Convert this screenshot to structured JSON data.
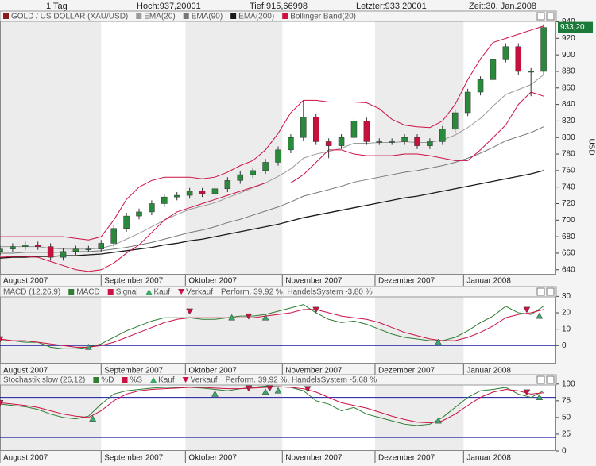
{
  "header": {
    "period": "1 Tag",
    "high": "Hoch:937,20001",
    "low": "Tief:915,66998",
    "last": "Letzter:933,20001",
    "time": "Zeit:30. Jan.2008"
  },
  "chart_data": [
    {
      "type": "candlestick",
      "title": "GOLD / US DOLLAR (XAU/USD)",
      "color": "#8b1a1a",
      "y_label": "USD",
      "x": [
        0,
        3,
        6,
        9,
        12,
        15,
        18,
        21,
        24,
        27,
        30,
        33,
        36,
        39,
        42,
        45,
        48,
        51,
        54,
        57,
        60,
        63,
        66,
        69,
        72,
        75,
        78,
        81,
        84,
        87,
        90,
        93,
        96,
        99,
        102,
        105,
        108,
        111,
        114,
        117,
        120,
        123,
        126,
        129
      ],
      "open": [
        662,
        665,
        668,
        670,
        668,
        655,
        662,
        665,
        665,
        672,
        690,
        705,
        710,
        720,
        728,
        730,
        735,
        732,
        738,
        748,
        755,
        760,
        770,
        785,
        800,
        825,
        795,
        790,
        800,
        820,
        795,
        795,
        795,
        800,
        790,
        795,
        810,
        830,
        855,
        870,
        895,
        910,
        880,
        880
      ],
      "close": [
        665,
        668,
        670,
        668,
        655,
        662,
        665,
        665,
        672,
        690,
        705,
        710,
        720,
        728,
        730,
        735,
        732,
        738,
        748,
        755,
        760,
        770,
        785,
        800,
        825,
        795,
        790,
        800,
        820,
        795,
        795,
        795,
        800,
        790,
        795,
        810,
        830,
        855,
        870,
        895,
        910,
        880,
        880,
        933.2
      ],
      "high": [
        669,
        672,
        674,
        674,
        672,
        666,
        669,
        669,
        676,
        694,
        709,
        714,
        724,
        732,
        734,
        739,
        739,
        742,
        752,
        759,
        764,
        774,
        789,
        804,
        845,
        829,
        799,
        804,
        824,
        824,
        799,
        799,
        804,
        804,
        799,
        814,
        834,
        859,
        874,
        899,
        914,
        914,
        884,
        937.2
      ],
      "low": [
        658,
        661,
        664,
        664,
        651,
        651,
        658,
        661,
        661,
        668,
        686,
        701,
        706,
        716,
        724,
        726,
        728,
        728,
        734,
        744,
        751,
        756,
        766,
        781,
        796,
        791,
        775,
        786,
        796,
        791,
        791,
        791,
        791,
        786,
        786,
        791,
        806,
        826,
        851,
        866,
        891,
        876,
        850,
        876
      ],
      "series": [
        {
          "name": "EMA(20)",
          "color": "#9a9a9a",
          "values": [
            668,
            668,
            668,
            668,
            666,
            665,
            665,
            665,
            666,
            670,
            677,
            684,
            692,
            700,
            707,
            713,
            717,
            721,
            727,
            733,
            739,
            745,
            753,
            762,
            775,
            780,
            783,
            787,
            793,
            793,
            794,
            794,
            795,
            794,
            794,
            797,
            803,
            812,
            823,
            838,
            852,
            858,
            864,
            876
          ]
        },
        {
          "name": "EMA(90)",
          "color": "#777777",
          "values": [
            660,
            660,
            661,
            661,
            661,
            661,
            662,
            662,
            663,
            665,
            667,
            670,
            673,
            677,
            681,
            685,
            688,
            692,
            697,
            701,
            706,
            711,
            716,
            722,
            729,
            733,
            737,
            741,
            746,
            749,
            752,
            755,
            758,
            760,
            763,
            766,
            770,
            775,
            781,
            788,
            796,
            801,
            806,
            813
          ]
        },
        {
          "name": "EMA(200)",
          "color": "#1a1a1a",
          "values": [
            654,
            655,
            655,
            656,
            656,
            657,
            657,
            658,
            659,
            661,
            663,
            665,
            667,
            670,
            672,
            675,
            677,
            680,
            683,
            686,
            689,
            692,
            695,
            699,
            703,
            706,
            709,
            712,
            715,
            718,
            721,
            724,
            727,
            729,
            732,
            735,
            738,
            741,
            744,
            747,
            750,
            753,
            756,
            760
          ]
        },
        {
          "name": "Bollinger Band(20)",
          "color": "#cc1144",
          "values": [
            680,
            680,
            680,
            680,
            680,
            680,
            678,
            676,
            680,
            700,
            725,
            740,
            748,
            752,
            752,
            752,
            750,
            752,
            758,
            766,
            772,
            785,
            805,
            830,
            845,
            845,
            843,
            843,
            843,
            842,
            835,
            822,
            815,
            813,
            812,
            820,
            840,
            870,
            895,
            915,
            920,
            925,
            930,
            935
          ]
        },
        {
          "color": "#cc1144",
          "values": [
            655,
            656,
            656,
            655,
            650,
            645,
            640,
            638,
            640,
            648,
            660,
            670,
            685,
            700,
            710,
            715,
            720,
            725,
            730,
            735,
            740,
            745,
            745,
            745,
            755,
            770,
            785,
            785,
            780,
            778,
            778,
            778,
            780,
            780,
            778,
            775,
            772,
            772,
            785,
            800,
            815,
            840,
            855,
            850
          ]
        }
      ],
      "last_value": 933.2,
      "last_label": "933,20",
      "ylim": [
        634,
        953
      ],
      "yticks": [
        640,
        660,
        680,
        700,
        720,
        740,
        760,
        780,
        800,
        820,
        840,
        860,
        880,
        900,
        920,
        940
      ],
      "xlim": [
        0,
        132
      ],
      "xticks": [
        {
          "value": 0,
          "label": "August 2007"
        },
        {
          "value": 24,
          "label": "September 2007"
        },
        {
          "value": 44,
          "label": "Oktober 2007"
        },
        {
          "value": 67,
          "label": "November 2007"
        },
        {
          "value": 89,
          "label": "Dezember 2007"
        },
        {
          "value": 110,
          "label": "Januar 2008"
        }
      ]
    },
    {
      "type": "line",
      "title": "MACD (12,26,9)",
      "performance": "Perform. 39,92 %, HandelsSystem -3,80 %",
      "x": [
        0,
        3,
        6,
        9,
        12,
        15,
        18,
        21,
        24,
        27,
        30,
        33,
        36,
        39,
        42,
        45,
        48,
        51,
        54,
        57,
        60,
        63,
        66,
        69,
        72,
        75,
        78,
        81,
        84,
        87,
        90,
        93,
        96,
        99,
        102,
        105,
        108,
        111,
        114,
        117,
        120,
        123,
        126,
        129
      ],
      "series": [
        {
          "name": "MACD",
          "color": "#2e7d32",
          "values": [
            3,
            3,
            2,
            2,
            -1,
            -2,
            -2,
            -1,
            1,
            5,
            9,
            12,
            15,
            17,
            17,
            17,
            16,
            16,
            17,
            18,
            18,
            19,
            21,
            23,
            25,
            20,
            16,
            14,
            15,
            13,
            10,
            7,
            5,
            4,
            3,
            3,
            5,
            9,
            14,
            18,
            24,
            20,
            19,
            24
          ]
        },
        {
          "name": "Signal",
          "color": "#cc1144",
          "values": [
            4,
            3,
            3,
            2,
            1,
            0,
            -1,
            -1,
            0,
            2,
            5,
            8,
            11,
            14,
            16,
            17,
            17,
            17,
            17,
            17,
            17,
            18,
            19,
            20,
            22,
            22,
            20,
            18,
            17,
            16,
            14,
            11,
            8,
            6,
            4,
            3,
            3,
            5,
            8,
            12,
            17,
            19,
            20,
            22
          ]
        }
      ],
      "markers": [
        {
          "name": "Kauf",
          "color": "#3aa86a",
          "x": [
            21,
            55,
            63,
            104,
            128
          ],
          "values": [
            -1,
            17,
            17,
            2,
            18
          ]
        },
        {
          "name": "Verkauf",
          "color": "#cc1144",
          "x": [
            0,
            45,
            59,
            75,
            125
          ],
          "values": [
            4,
            21,
            18,
            22,
            22
          ]
        }
      ],
      "levels": [
        0
      ],
      "ylim": [
        -11,
        36
      ],
      "yticks": [
        0,
        10,
        20,
        30
      ],
      "xlim": [
        0,
        132
      ],
      "xticks": [
        {
          "value": 0,
          "label": "August 2007"
        },
        {
          "value": 24,
          "label": "September 2007"
        },
        {
          "value": 44,
          "label": "Oktober 2007"
        },
        {
          "value": 67,
          "label": "November 2007"
        },
        {
          "value": 89,
          "label": "Dezember 2007"
        },
        {
          "value": 110,
          "label": "Januar 2008"
        }
      ]
    },
    {
      "type": "line",
      "title": "Stochastik slow (26,12)",
      "performance": "Perform. 39,92 %, HandelsSystem -5,68 %",
      "x": [
        0,
        3,
        6,
        9,
        12,
        15,
        18,
        21,
        24,
        27,
        30,
        33,
        36,
        39,
        42,
        45,
        48,
        51,
        54,
        57,
        60,
        63,
        66,
        69,
        72,
        75,
        78,
        81,
        84,
        87,
        90,
        93,
        96,
        99,
        102,
        105,
        108,
        111,
        114,
        117,
        120,
        123,
        126,
        129
      ],
      "series": [
        {
          "name": "%D",
          "color": "#2e7d32",
          "values": [
            70,
            68,
            66,
            62,
            55,
            50,
            48,
            52,
            70,
            85,
            90,
            92,
            94,
            95,
            95,
            95,
            94,
            92,
            90,
            93,
            95,
            97,
            96,
            95,
            90,
            75,
            70,
            60,
            65,
            55,
            50,
            45,
            40,
            38,
            40,
            50,
            65,
            80,
            90,
            92,
            95,
            85,
            80,
            90
          ]
        },
        {
          "name": "%S",
          "color": "#cc1144",
          "values": [
            72,
            70,
            68,
            65,
            60,
            55,
            52,
            50,
            60,
            75,
            85,
            90,
            92,
            93,
            94,
            95,
            95,
            94,
            93,
            93,
            94,
            95,
            96,
            95,
            93,
            88,
            80,
            72,
            68,
            64,
            58,
            52,
            47,
            43,
            42,
            45,
            55,
            68,
            80,
            88,
            92,
            90,
            85,
            87
          ]
        }
      ],
      "markers": [
        {
          "name": "Kauf",
          "color": "#3aa86a",
          "x": [
            22,
            51,
            63,
            66,
            104,
            128
          ],
          "values": [
            48,
            85,
            88,
            90,
            45,
            80
          ]
        },
        {
          "name": "Verkauf",
          "color": "#cc1144",
          "x": [
            0,
            59,
            64,
            73,
            125
          ],
          "values": [
            72,
            94,
            94,
            93,
            88
          ]
        }
      ],
      "levels": [
        80,
        20
      ],
      "ylim": [
        0,
        114
      ],
      "yticks": [
        0,
        25,
        50,
        75,
        100
      ],
      "xlim": [
        0,
        132
      ],
      "xticks": [
        {
          "value": 0,
          "label": "August 2007"
        },
        {
          "value": 24,
          "label": "September 2007"
        },
        {
          "value": 44,
          "label": "Oktober 2007"
        },
        {
          "value": 67,
          "label": "November 2007"
        },
        {
          "value": 89,
          "label": "Dezember 2007"
        },
        {
          "value": 110,
          "label": "Januar 2008"
        }
      ]
    }
  ]
}
